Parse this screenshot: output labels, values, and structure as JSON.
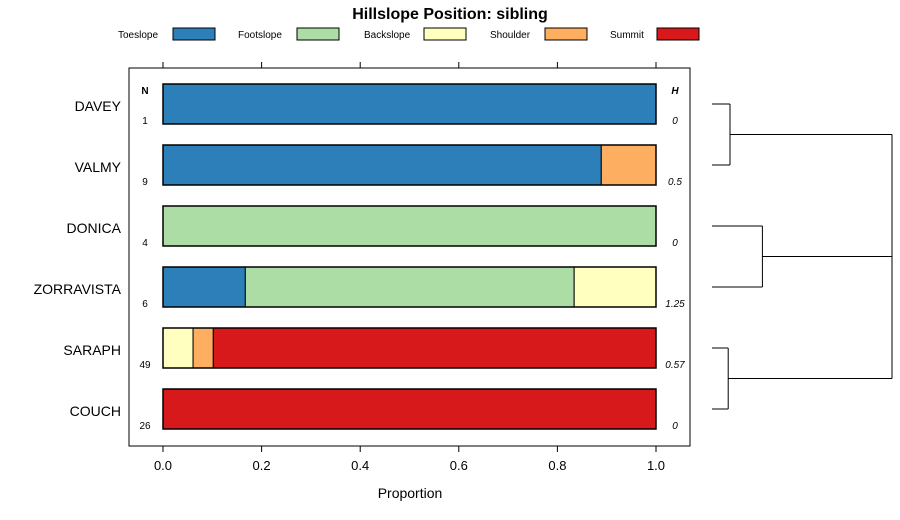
{
  "chart_data": {
    "type": "bar",
    "orientation": "horizontal",
    "stacked": true,
    "title": "Hillslope Position: sibling",
    "xlabel": "Proportion",
    "xlim": [
      0,
      1
    ],
    "xticks": [
      "0.0",
      "0.2",
      "0.4",
      "0.6",
      "0.8",
      "1.0"
    ],
    "n_header": "N",
    "h_header": "H",
    "legend_position": "top",
    "categories": [
      "DAVEY",
      "VALMY",
      "DONICA",
      "ZORRAVISTA",
      "SARAPH",
      "COUCH"
    ],
    "n_values": [
      "1",
      "9",
      "4",
      "6",
      "49",
      "26"
    ],
    "h_values": [
      "0",
      "0.5",
      "0",
      "1.25",
      "0.57",
      "0"
    ],
    "series": [
      {
        "name": "Toeslope",
        "color": "#2C7FB8",
        "values": [
          1.0,
          0.889,
          0,
          0.167,
          0,
          0
        ]
      },
      {
        "name": "Footslope",
        "color": "#ABDDA4",
        "values": [
          0,
          0,
          1.0,
          0.667,
          0,
          0
        ]
      },
      {
        "name": "Backslope",
        "color": "#FFFFBF",
        "values": [
          0,
          0,
          0,
          0.166,
          0.061,
          0
        ]
      },
      {
        "name": "Shoulder",
        "color": "#FDAE61",
        "values": [
          0,
          0.111,
          0,
          0,
          0.041,
          0
        ]
      },
      {
        "name": "Summit",
        "color": "#D7191C",
        "values": [
          0,
          0,
          0,
          0,
          0.898,
          1.0
        ]
      }
    ],
    "dendrogram": {
      "merges": [
        {
          "left": "DAVEY",
          "right": "VALMY",
          "height": 0.1
        },
        {
          "left": "DONICA",
          "right": "ZORRAVISTA",
          "height": 0.28
        },
        {
          "left": "SARAPH",
          "right": "COUCH",
          "height": 0.09
        },
        {
          "left": "DAVEY+VALMY",
          "right": "DONICA+ZORRAVISTA",
          "height": 1.0
        },
        {
          "left": "DAVEY+VALMY+DONICA+ZORRAVISTA",
          "right": "SARAPH+COUCH",
          "height": 1.0
        }
      ]
    }
  }
}
